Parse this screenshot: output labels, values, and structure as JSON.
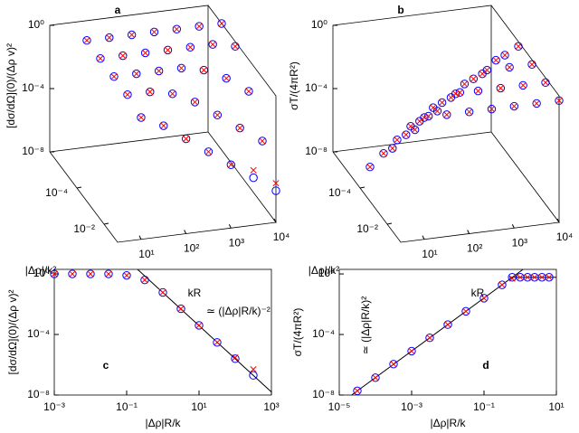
{
  "chart_data": [
    {
      "type": "scatter3d",
      "label": "a",
      "xlabel": "kR",
      "ylabel": "|Δρ|/k²",
      "zlabel": "[dσ/dΩ](0)/(Δρ v)²",
      "xscale": "log",
      "yscale": "log",
      "zscale": "log",
      "xlim": [
        3,
        10000
      ],
      "ylim": [
        1e-06,
        0.1
      ],
      "zlim": [
        1e-08,
        1
      ],
      "xticks": [
        {
          "value": 10,
          "label": "10¹"
        },
        {
          "value": 100,
          "label": "10²"
        },
        {
          "value": 1000,
          "label": "10³"
        },
        {
          "value": 10000,
          "label": "10⁴"
        }
      ],
      "yticks": [
        {
          "value": 0.0001,
          "label": "10⁻⁴"
        },
        {
          "value": 0.01,
          "label": "10⁻²"
        }
      ],
      "zticks": [
        {
          "value": 1e-08,
          "label": "10⁻⁸"
        },
        {
          "value": 0.0001,
          "label": "10⁻⁴"
        },
        {
          "value": 1,
          "label": "10⁰"
        }
      ],
      "x": [
        10,
        10,
        10,
        10,
        10,
        31.6,
        31.6,
        31.6,
        31.6,
        31.6,
        100,
        100,
        100,
        100,
        100,
        316,
        316,
        316,
        316,
        316,
        1000,
        1000,
        1000,
        1000,
        1000,
        3162,
        3162,
        3162,
        3162,
        3162,
        10000,
        10000,
        10000,
        10000,
        10000
      ],
      "y": [
        1e-05,
        0.0001,
        0.001,
        0.01,
        0.1,
        1e-05,
        0.0001,
        0.001,
        0.01,
        0.1,
        1e-05,
        0.0001,
        0.001,
        0.01,
        0.1,
        1e-05,
        0.0001,
        0.001,
        0.01,
        0.1,
        1e-05,
        0.0001,
        0.001,
        0.01,
        0.1,
        1e-05,
        0.0001,
        0.001,
        0.01,
        0.1,
        1e-05,
        0.0001,
        0.001,
        0.01,
        0.1
      ],
      "series": [
        {
          "color": "#0000ff",
          "marker": "circle",
          "values": [
            1,
            1,
            1,
            1,
            0.5,
            1,
            1,
            1,
            1,
            0.1,
            1,
            1,
            1,
            0.5,
            0.01,
            1,
            1,
            1,
            0.1,
            0.001,
            1,
            1,
            0.5,
            0.01,
            0.0001,
            1,
            1,
            0.1,
            0.001,
            1e-05,
            1,
            0.5,
            0.01,
            0.0001,
            1e-06
          ]
        },
        {
          "color": "#ff0000",
          "marker": "cross",
          "values": [
            1,
            1,
            1,
            1,
            0.5,
            1,
            1,
            1,
            1,
            0.1,
            1,
            1,
            1,
            0.5,
            0.01,
            1,
            1,
            1,
            0.1,
            0.001,
            1,
            1,
            0.5,
            0.01,
            0.0001,
            1,
            1,
            0.1,
            0.001,
            3e-05,
            1,
            0.5,
            0.01,
            0.0001,
            3e-06
          ]
        }
      ]
    },
    {
      "type": "scatter3d",
      "label": "b",
      "xlabel": "kR",
      "ylabel": "|Δρ|/k²",
      "zlabel": "σT/(4πR²)",
      "xscale": "log",
      "yscale": "log",
      "zscale": "log",
      "xlim": [
        3,
        10000
      ],
      "ylim": [
        1e-06,
        0.1
      ],
      "zlim": [
        1e-08,
        1
      ],
      "xticks": [
        {
          "value": 10,
          "label": "10¹"
        },
        {
          "value": 100,
          "label": "10²"
        },
        {
          "value": 1000,
          "label": "10³"
        },
        {
          "value": 10000,
          "label": "10⁴"
        }
      ],
      "yticks": [
        {
          "value": 0.0001,
          "label": "10⁻⁴"
        },
        {
          "value": 0.01,
          "label": "10⁻²"
        }
      ],
      "zticks": [
        {
          "value": 1e-08,
          "label": "10⁻⁸"
        },
        {
          "value": 0.0001,
          "label": "10⁻⁴"
        },
        {
          "value": 1,
          "label": "10⁰"
        }
      ],
      "x": [
        10,
        10,
        10,
        10,
        10,
        31.6,
        31.6,
        31.6,
        31.6,
        31.6,
        100,
        100,
        100,
        100,
        100,
        316,
        316,
        316,
        316,
        316,
        1000,
        1000,
        1000,
        1000,
        1000,
        3162,
        3162,
        3162,
        3162,
        3162,
        10000,
        10000,
        10000,
        10000,
        10000
      ],
      "y": [
        1e-05,
        0.0001,
        0.001,
        0.01,
        0.1,
        1e-05,
        0.0001,
        0.001,
        0.01,
        0.1,
        1e-05,
        0.0001,
        0.001,
        0.01,
        0.1,
        1e-05,
        0.0001,
        0.001,
        0.01,
        0.1,
        1e-05,
        0.0001,
        0.001,
        0.01,
        0.1,
        1e-05,
        0.0001,
        0.001,
        0.01,
        0.1,
        1e-05,
        0.0001,
        0.001,
        0.01,
        0.1
      ],
      "series": [
        {
          "color": "#0000ff",
          "marker": "circle",
          "values": [
            1e-08,
            1e-06,
            0.0001,
            0.01,
            0.5,
            1e-07,
            1e-05,
            0.001,
            0.1,
            0.5,
            1e-06,
            0.0001,
            0.01,
            0.5,
            0.5,
            1e-05,
            0.001,
            0.1,
            0.5,
            0.5,
            0.0001,
            0.01,
            0.5,
            0.5,
            0.5,
            0.001,
            0.1,
            0.5,
            0.5,
            0.5,
            0.01,
            0.5,
            0.5,
            0.5,
            0.5
          ]
        },
        {
          "color": "#ff0000",
          "marker": "cross",
          "values": [
            1e-08,
            1e-06,
            0.0001,
            0.01,
            0.5,
            1e-07,
            1e-05,
            0.001,
            0.1,
            0.5,
            1e-06,
            0.0001,
            0.01,
            0.5,
            0.5,
            1e-05,
            0.001,
            0.1,
            0.5,
            0.5,
            0.0001,
            0.01,
            0.5,
            0.5,
            0.5,
            0.001,
            0.1,
            0.5,
            0.5,
            0.5,
            0.01,
            0.5,
            0.5,
            0.5,
            0.5
          ]
        }
      ]
    },
    {
      "type": "scatter",
      "label": "c",
      "xlabel": "|Δρ|R/k",
      "ylabel": "[dσ/dΩ](0)/(Δρ v)²",
      "annotation": "≃ (|Δρ|R/k)⁻²",
      "xscale": "log",
      "yscale": "log",
      "xlim": [
        0.001,
        1000
      ],
      "ylim": [
        1e-08,
        2
      ],
      "xticks": [
        {
          "value": 0.001,
          "label": "10⁻³"
        },
        {
          "value": 0.1,
          "label": "10⁻¹"
        },
        {
          "value": 10,
          "label": "10¹"
        },
        {
          "value": 1000,
          "label": "10³"
        }
      ],
      "yticks": [
        {
          "value": 1e-08,
          "label": "10⁻⁸"
        },
        {
          "value": 0.0001,
          "label": "10⁻⁴"
        },
        {
          "value": 1,
          "label": "10⁰"
        }
      ],
      "x": [
        0.001,
        0.00316,
        0.01,
        0.0316,
        0.1,
        0.316,
        1,
        3.16,
        10,
        31.6,
        100,
        316
      ],
      "series": [
        {
          "color": "#0000ff",
          "marker": "circle",
          "values": [
            1,
            1,
            1,
            1,
            0.8,
            0.4,
            0.06,
            0.005,
            0.0004,
            3e-05,
            2.5e-06,
            2e-07
          ]
        },
        {
          "color": "#ff0000",
          "marker": "cross",
          "values": [
            1,
            1,
            1,
            1,
            0.8,
            0.4,
            0.06,
            0.005,
            0.0004,
            3e-05,
            3e-06,
            5e-07
          ]
        }
      ],
      "lines": [
        {
          "color": "#000000",
          "x": [
            0.2,
            1000
          ],
          "values": [
            2,
            1.6e-08
          ]
        }
      ]
    },
    {
      "type": "scatter",
      "label": "d",
      "xlabel": "|Δρ|R/k",
      "ylabel": "σT/(4πR²)",
      "annotation": "≃ (|Δρ|R/k)²",
      "xscale": "log",
      "yscale": "log",
      "xlim": [
        1e-05,
        10
      ],
      "ylim": [
        1e-08,
        2
      ],
      "xticks": [
        {
          "value": 1e-05,
          "label": "10⁻⁵"
        },
        {
          "value": 0.001,
          "label": "10⁻³"
        },
        {
          "value": 0.1,
          "label": "10⁻¹"
        },
        {
          "value": 10,
          "label": "10¹"
        }
      ],
      "yticks": [
        {
          "value": 1e-08,
          "label": "10⁻⁸"
        },
        {
          "value": 0.0001,
          "label": "10⁻⁴"
        },
        {
          "value": 1,
          "label": "10⁰"
        }
      ],
      "x": [
        3.16e-05,
        0.0001,
        0.000316,
        0.001,
        0.00316,
        0.01,
        0.0316,
        0.1,
        0.316,
        0.6,
        1,
        1.6,
        2.5,
        4,
        6.3
      ],
      "series": [
        {
          "color": "#0000ff",
          "marker": "circle",
          "values": [
            1.9e-08,
            1.4e-07,
            1.1e-06,
            8e-06,
            6e-05,
            0.00045,
            0.0034,
            0.025,
            0.19,
            0.6,
            0.6,
            0.6,
            0.6,
            0.6,
            0.6
          ]
        },
        {
          "color": "#ff0000",
          "marker": "cross",
          "values": [
            1.9e-08,
            1.4e-07,
            1.1e-06,
            8e-06,
            6e-05,
            0.00045,
            0.0034,
            0.025,
            0.19,
            0.5,
            0.6,
            0.6,
            0.6,
            0.6,
            0.6
          ]
        }
      ],
      "lines": [
        {
          "color": "#000000",
          "x": [
            2.2e-05,
            1.2
          ],
          "values": [
            1e-08,
            2
          ]
        },
        {
          "color": "#000000",
          "x": [
            0.5,
            10
          ],
          "values": [
            0.6,
            0.6
          ]
        }
      ]
    }
  ]
}
